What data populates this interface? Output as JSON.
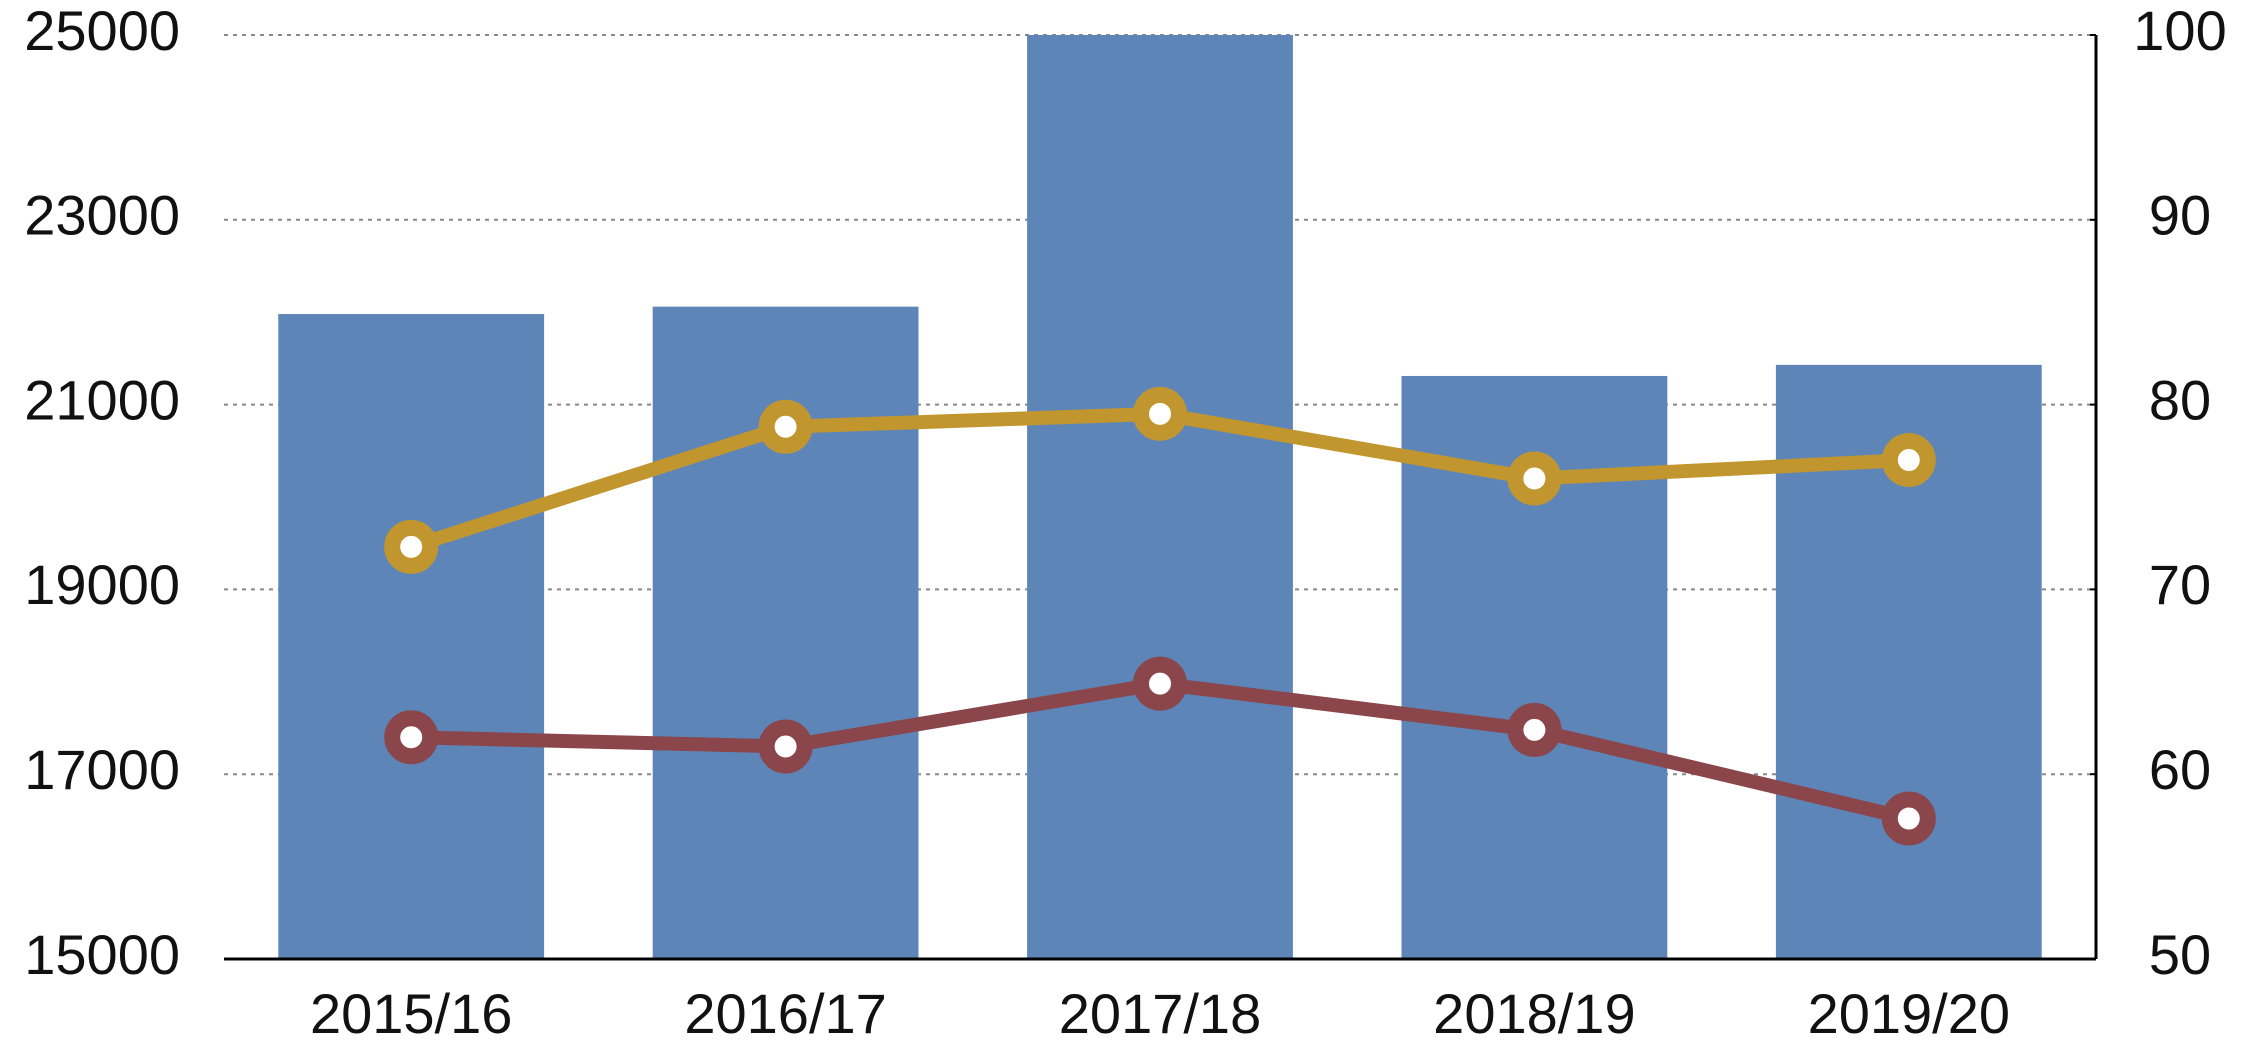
{
  "chart_data": {
    "type": "bar_line",
    "categories": [
      "2015/16",
      "2016/17",
      "2017/18",
      "2018/19",
      "2019/20"
    ],
    "series": [
      {
        "type": "bar",
        "color": "#5d85b8",
        "values": [
          21980,
          22060,
          25000,
          21310,
          21430
        ]
      },
      {
        "type": "line",
        "axis": "y2",
        "color": "#c1962f",
        "values": [
          72.3,
          78.8,
          79.5,
          76.0,
          77.0
        ]
      },
      {
        "type": "line",
        "axis": "y2",
        "color": "#8a464a",
        "values": [
          62.0,
          61.5,
          64.9,
          62.4,
          57.6
        ]
      }
    ],
    "ylim": [
      15000,
      25000
    ],
    "yticks": [
      15000,
      17000,
      19000,
      21000,
      23000,
      25000
    ],
    "y2lim": [
      50,
      100
    ],
    "y2ticks": [
      50,
      60,
      70,
      80,
      90,
      100
    ],
    "grid": true
  }
}
